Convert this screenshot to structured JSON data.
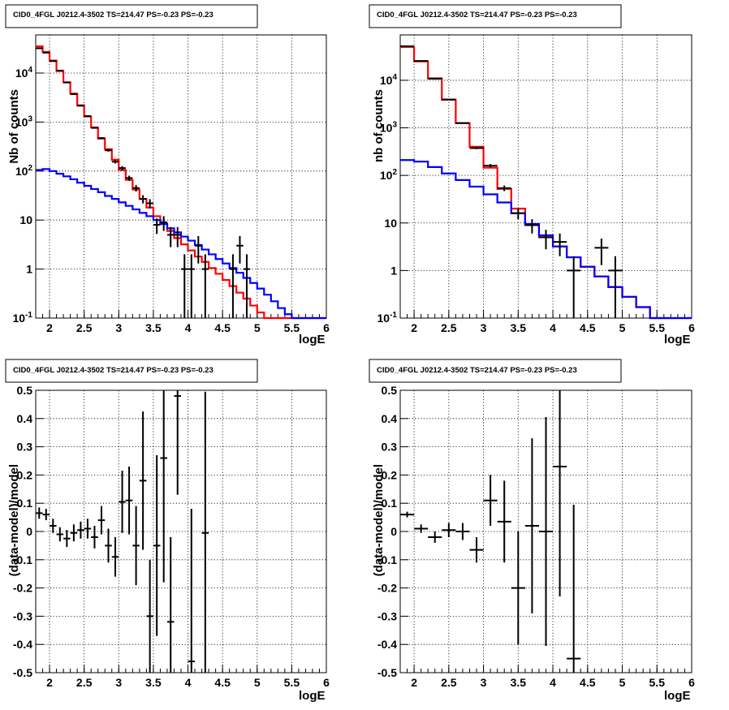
{
  "chart_data": [
    {
      "type": "line",
      "title": "CID0_4FGL J0212.4-3502 TS=214.47 PS=-0.23 PS=-0.23",
      "xlabel": "logE",
      "ylabel": "Nb of counts",
      "xlim": [
        1.8,
        6.0
      ],
      "ylim": [
        0.1,
        60000
      ],
      "yscale": "log",
      "grid": true,
      "x_ticks": [
        "2",
        "2.5",
        "3",
        "3.5",
        "4",
        "4.5",
        "5",
        "5.5",
        "6"
      ],
      "y_ticks": [
        "10^-1",
        "1",
        "10",
        "10^2",
        "10^3",
        "10^4"
      ],
      "bin_edges": [
        1.8,
        1.9,
        2.0,
        2.1,
        2.2,
        2.3,
        2.4,
        2.5,
        2.6,
        2.7,
        2.8,
        2.9,
        3.0,
        3.1,
        3.2,
        3.3,
        3.4,
        3.5,
        3.6,
        3.7,
        3.8,
        3.9,
        4.0,
        4.1,
        4.2,
        4.3,
        4.4,
        4.5,
        4.6,
        4.7,
        4.8,
        4.9,
        5.0,
        5.1,
        5.2,
        5.3,
        5.4,
        5.5,
        5.6,
        5.7,
        5.8,
        5.9,
        6.0
      ],
      "series": [
        {
          "color": "#ff0000",
          "values": [
            35000,
            27000,
            18000,
            11000,
            6500,
            3800,
            2200,
            1300,
            780,
            460,
            280,
            170,
            105,
            66,
            42,
            27,
            18,
            12,
            8.5,
            6.0,
            4.3,
            3.2,
            2.4,
            1.8,
            1.4,
            1.05,
            0.8,
            0.6,
            0.45,
            0.33,
            0.25,
            0.18,
            0.13,
            0.1,
            0.1,
            0.1,
            0.1,
            0.1,
            0.1,
            0.1,
            0.1,
            0.1
          ]
        },
        {
          "color": "#0000ff",
          "values": [
            105,
            110,
            100,
            88,
            78,
            68,
            58,
            50,
            43,
            37,
            31,
            27,
            23,
            19.5,
            16.5,
            14,
            12,
            10,
            8.3,
            6.8,
            5.6,
            4.6,
            3.8,
            3.1,
            2.5,
            2.0,
            1.6,
            1.3,
            1.05,
            0.84,
            0.66,
            0.52,
            0.4,
            0.3,
            0.22,
            0.16,
            0.12,
            0.1,
            0.1,
            0.1,
            0.1,
            0.1
          ]
        }
      ],
      "points": [
        {
          "x": 1.85,
          "y": 32000,
          "err": 180
        },
        {
          "x": 1.95,
          "y": 26000,
          "err": 160
        },
        {
          "x": 2.05,
          "y": 17500,
          "err": 130
        },
        {
          "x": 2.15,
          "y": 11200,
          "err": 105
        },
        {
          "x": 2.25,
          "y": 6400,
          "err": 80
        },
        {
          "x": 2.35,
          "y": 3700,
          "err": 60
        },
        {
          "x": 2.45,
          "y": 2150,
          "err": 46
        },
        {
          "x": 2.55,
          "y": 1320,
          "err": 36
        },
        {
          "x": 2.65,
          "y": 760,
          "err": 28
        },
        {
          "x": 2.75,
          "y": 470,
          "err": 22
        },
        {
          "x": 2.85,
          "y": 265,
          "err": 16
        },
        {
          "x": 2.95,
          "y": 155,
          "err": 12
        },
        {
          "x": 3.05,
          "y": 115,
          "err": 11
        },
        {
          "x": 3.15,
          "y": 72,
          "err": 8.5
        },
        {
          "x": 3.25,
          "y": 45,
          "err": 6.7
        },
        {
          "x": 3.35,
          "y": 27,
          "err": 5.2
        },
        {
          "x": 3.45,
          "y": 22,
          "err": 4.7
        },
        {
          "x": 3.55,
          "y": 8,
          "err": 2.8
        },
        {
          "x": 3.65,
          "y": 9,
          "err": 3.0
        },
        {
          "x": 3.75,
          "y": 5,
          "err": 2.2
        },
        {
          "x": 3.85,
          "y": 5,
          "err": 2.2
        },
        {
          "x": 3.95,
          "y": 1,
          "err": 1
        },
        {
          "x": 4.05,
          "y": 1,
          "err": 1
        },
        {
          "x": 4.15,
          "y": 3,
          "err": 1.7
        },
        {
          "x": 4.25,
          "y": 1,
          "err": 1
        },
        {
          "x": 4.65,
          "y": 1,
          "err": 1
        },
        {
          "x": 4.75,
          "y": 3,
          "err": 1.7
        },
        {
          "x": 4.85,
          "y": 1,
          "err": 1
        }
      ]
    },
    {
      "type": "line",
      "title": "CID0_4FGL J0212.4-3502 TS=214.47 PS=-0.23 PS=-0.23",
      "xlabel": "logE",
      "ylabel": "nb of counts",
      "xlim": [
        1.8,
        6.0
      ],
      "ylim": [
        0.1,
        90000
      ],
      "yscale": "log",
      "grid": true,
      "x_ticks": [
        "2",
        "2.5",
        "3",
        "3.5",
        "4",
        "4.5",
        "5",
        "5.5",
        "6"
      ],
      "y_ticks": [
        "10^-1",
        "1",
        "10",
        "10^2",
        "10^3",
        "10^4"
      ],
      "bin_edges": [
        1.8,
        2.0,
        2.2,
        2.4,
        2.6,
        2.8,
        3.0,
        3.2,
        3.4,
        3.6,
        3.8,
        4.0,
        4.2,
        4.4,
        4.6,
        4.8,
        5.0,
        5.2,
        5.4,
        5.6,
        5.8,
        6.0
      ],
      "series": [
        {
          "color": "#ff0000",
          "values": [
            50000,
            25000,
            11000,
            3900,
            1250,
            400,
            145,
            52,
            20,
            9,
            5,
            3.2,
            1.9,
            1.2,
            0.75,
            0.45,
            0.28,
            0.17,
            0.1,
            0.1,
            0.1
          ]
        },
        {
          "color": "#0000ff",
          "values": [
            210,
            195,
            150,
            110,
            80,
            58,
            40,
            27,
            16,
            9.5,
            5.5,
            3.2,
            1.9,
            1.2,
            0.75,
            0.45,
            0.28,
            0.17,
            0.1,
            0.1,
            0.1
          ]
        }
      ],
      "points": [
        {
          "x": 1.9,
          "y": 52000,
          "err": 230
        },
        {
          "x": 2.1,
          "y": 25500,
          "err": 160
        },
        {
          "x": 2.3,
          "y": 10800,
          "err": 105
        },
        {
          "x": 2.5,
          "y": 3950,
          "err": 63
        },
        {
          "x": 2.7,
          "y": 1260,
          "err": 36
        },
        {
          "x": 2.9,
          "y": 375,
          "err": 19
        },
        {
          "x": 3.1,
          "y": 160,
          "err": 13
        },
        {
          "x": 3.3,
          "y": 54,
          "err": 7.3
        },
        {
          "x": 3.5,
          "y": 16,
          "err": 4
        },
        {
          "x": 3.7,
          "y": 9,
          "err": 3
        },
        {
          "x": 3.9,
          "y": 5,
          "err": 2.2
        },
        {
          "x": 4.1,
          "y": 4,
          "err": 2
        },
        {
          "x": 4.3,
          "y": 1,
          "err": 1
        },
        {
          "x": 4.7,
          "y": 3,
          "err": 1.7
        },
        {
          "x": 4.9,
          "y": 1,
          "err": 1
        }
      ]
    },
    {
      "type": "scatter",
      "title": "CID0_4FGL J0212.4-3502 TS=214.47 PS=-0.23 PS=-0.23",
      "xlabel": "logE",
      "ylabel": "(data-model)/model",
      "xlim": [
        1.8,
        6.0
      ],
      "ylim": [
        -0.5,
        0.5
      ],
      "grid": true,
      "x_ticks": [
        "2",
        "2.5",
        "3",
        "3.5",
        "4",
        "4.5",
        "5",
        "5.5",
        "6"
      ],
      "y_ticks": [
        "-0.5",
        "-0.4",
        "-0.3",
        "-0.2",
        "-0.1",
        "0",
        "0.1",
        "0.2",
        "0.3",
        "0.4",
        "0.5"
      ],
      "xerr": 0.05,
      "points": [
        {
          "x": 1.85,
          "y": 0.065,
          "err": 0.02
        },
        {
          "x": 1.95,
          "y": 0.06,
          "err": 0.02
        },
        {
          "x": 2.05,
          "y": 0.02,
          "err": 0.025
        },
        {
          "x": 2.15,
          "y": -0.01,
          "err": 0.025
        },
        {
          "x": 2.25,
          "y": -0.025,
          "err": 0.03
        },
        {
          "x": 2.35,
          "y": -0.005,
          "err": 0.03
        },
        {
          "x": 2.45,
          "y": 0.005,
          "err": 0.03
        },
        {
          "x": 2.55,
          "y": 0.01,
          "err": 0.035
        },
        {
          "x": 2.65,
          "y": -0.02,
          "err": 0.04
        },
        {
          "x": 2.75,
          "y": 0.04,
          "err": 0.05
        },
        {
          "x": 2.85,
          "y": -0.05,
          "err": 0.06
        },
        {
          "x": 2.95,
          "y": -0.09,
          "err": 0.07
        },
        {
          "x": 3.05,
          "y": 0.105,
          "err": 0.11
        },
        {
          "x": 3.15,
          "y": 0.11,
          "err": 0.12
        },
        {
          "x": 3.25,
          "y": -0.05,
          "err": 0.14
        },
        {
          "x": 3.35,
          "y": 0.18,
          "err": 0.245
        },
        {
          "x": 3.45,
          "y": -0.3,
          "err": 0.2
        },
        {
          "x": 3.55,
          "y": -0.05,
          "err": 0.32
        },
        {
          "x": 3.65,
          "y": 0.26,
          "err": 0.44
        },
        {
          "x": 3.75,
          "y": -0.32,
          "err": 0.3
        },
        {
          "x": 3.85,
          "y": 0.48,
          "err": 0.35
        },
        {
          "x": 4.05,
          "y": -0.46,
          "err": 0.54
        },
        {
          "x": 4.25,
          "y": -0.005,
          "err": 0.5
        }
      ]
    },
    {
      "type": "scatter",
      "title": "CID0_4FGL J0212.4-3502 TS=214.47 PS=-0.23 PS=-0.23",
      "xlabel": "logE",
      "ylabel": "(data-model)/model",
      "xlim": [
        1.8,
        6.0
      ],
      "ylim": [
        -0.5,
        0.5
      ],
      "grid": true,
      "x_ticks": [
        "2",
        "2.5",
        "3",
        "3.5",
        "4",
        "4.5",
        "5",
        "5.5",
        "6"
      ],
      "y_ticks": [
        "-0.5",
        "-0.4",
        "-0.3",
        "-0.2",
        "-0.1",
        "0",
        "0.1",
        "0.2",
        "0.3",
        "0.4",
        "0.5"
      ],
      "xerr": 0.1,
      "points": [
        {
          "x": 1.9,
          "y": 0.06,
          "err": 0.01
        },
        {
          "x": 2.1,
          "y": 0.01,
          "err": 0.015
        },
        {
          "x": 2.3,
          "y": -0.02,
          "err": 0.02
        },
        {
          "x": 2.5,
          "y": 0.005,
          "err": 0.025
        },
        {
          "x": 2.7,
          "y": 0.0,
          "err": 0.03
        },
        {
          "x": 2.9,
          "y": -0.065,
          "err": 0.045
        },
        {
          "x": 3.1,
          "y": 0.11,
          "err": 0.09
        },
        {
          "x": 3.3,
          "y": 0.035,
          "err": 0.145
        },
        {
          "x": 3.5,
          "y": -0.2,
          "err": 0.2
        },
        {
          "x": 3.7,
          "y": 0.02,
          "err": 0.31
        },
        {
          "x": 3.9,
          "y": 0.0,
          "err": 0.405
        },
        {
          "x": 4.1,
          "y": 0.23,
          "err": 0.46
        },
        {
          "x": 4.3,
          "y": -0.45,
          "err": 0.545
        }
      ]
    }
  ]
}
